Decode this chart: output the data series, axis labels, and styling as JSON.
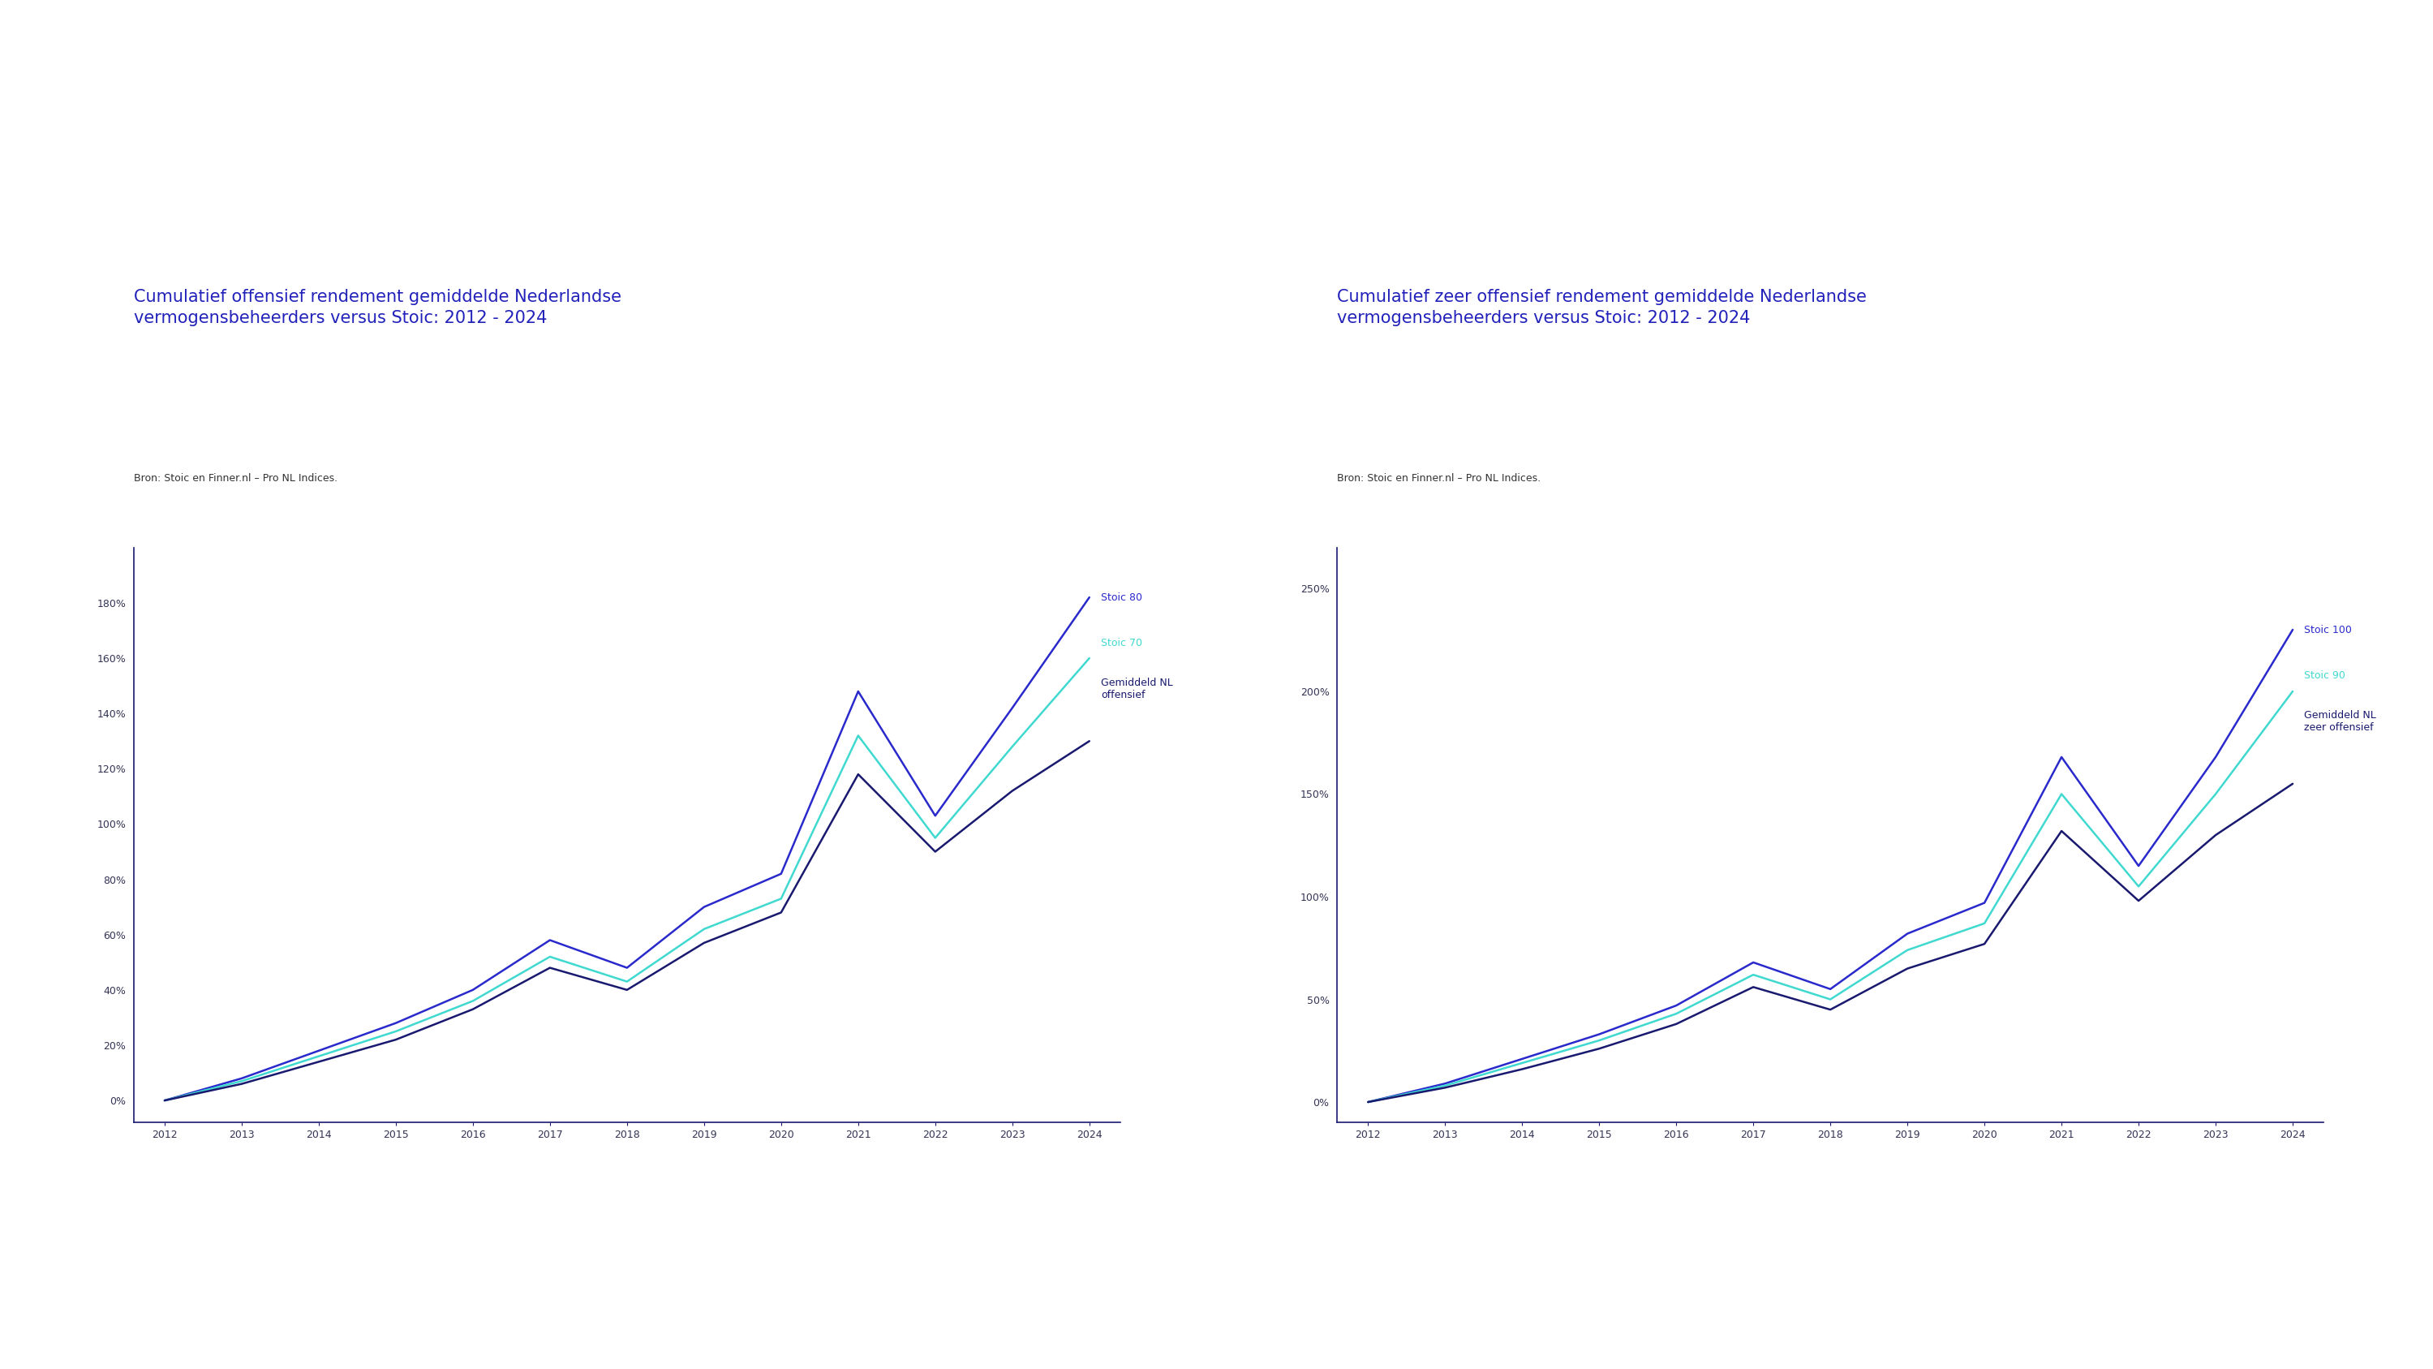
{
  "title1": "Cumulatief offensief rendement gemiddelde Nederlandse\nvermogensbeheerders versus Stoic: 2012 - 2024",
  "subtitle1": "Bron: Stoic en Finner.nl – Pro NL Indices.",
  "title2": "Cumulatief zeer offensief rendement gemiddelde Nederlandse\nvermogensbeheerders versus Stoic: 2012 - 2024",
  "subtitle2": "Bron: Stoic en Finner.nl – Pro NL Indices.",
  "years": [
    2012,
    2013,
    2014,
    2015,
    2016,
    2017,
    2018,
    2019,
    2020,
    2021,
    2022,
    2023,
    2024
  ],
  "chart1": {
    "series_keys": [
      "stoic80",
      "stoic70",
      "gemiddeld"
    ],
    "stoic80": [
      0,
      8,
      18,
      28,
      40,
      58,
      48,
      70,
      82,
      148,
      103,
      142,
      182
    ],
    "stoic70": [
      0,
      7,
      16,
      25,
      36,
      52,
      43,
      62,
      73,
      132,
      95,
      128,
      160
    ],
    "gemiddeld": [
      0,
      6,
      14,
      22,
      33,
      48,
      40,
      57,
      68,
      118,
      90,
      112,
      130
    ],
    "colors": [
      "#2929cc",
      "#40d9d0",
      "#191970"
    ],
    "labels": [
      "Stoic 80",
      "Stoic 70",
      "Gemiddeld NL\noffensief"
    ],
    "yticks": [
      0,
      20,
      40,
      60,
      80,
      100,
      120,
      140,
      160,
      180
    ],
    "ylim": [
      -8,
      200
    ]
  },
  "chart2": {
    "series_keys": [
      "stoic100",
      "stoic90",
      "gemiddeld"
    ],
    "stoic100": [
      0,
      9,
      21,
      33,
      47,
      68,
      55,
      82,
      97,
      168,
      115,
      168,
      230
    ],
    "stoic90": [
      0,
      8,
      19,
      30,
      43,
      62,
      50,
      74,
      87,
      150,
      105,
      150,
      200
    ],
    "gemiddeld": [
      0,
      7,
      16,
      26,
      38,
      56,
      45,
      65,
      77,
      132,
      98,
      130,
      155
    ],
    "colors": [
      "#2929cc",
      "#40d9d0",
      "#191970"
    ],
    "labels": [
      "Stoic 100",
      "Stoic 90",
      "Gemiddeld NL\nzeer offensief"
    ],
    "yticks": [
      0,
      50,
      100,
      150,
      200,
      250
    ],
    "ylim": [
      -10,
      270
    ]
  },
  "title_color": "#2222bb",
  "subtitle_color": "#333333",
  "tick_color": "#333355",
  "spine_color": "#191970",
  "background_color": "#ffffff",
  "line_width": 1.8,
  "title_fontsize": 15,
  "subtitle_fontsize": 9,
  "tick_fontsize": 9,
  "legend_fontsize": 9
}
